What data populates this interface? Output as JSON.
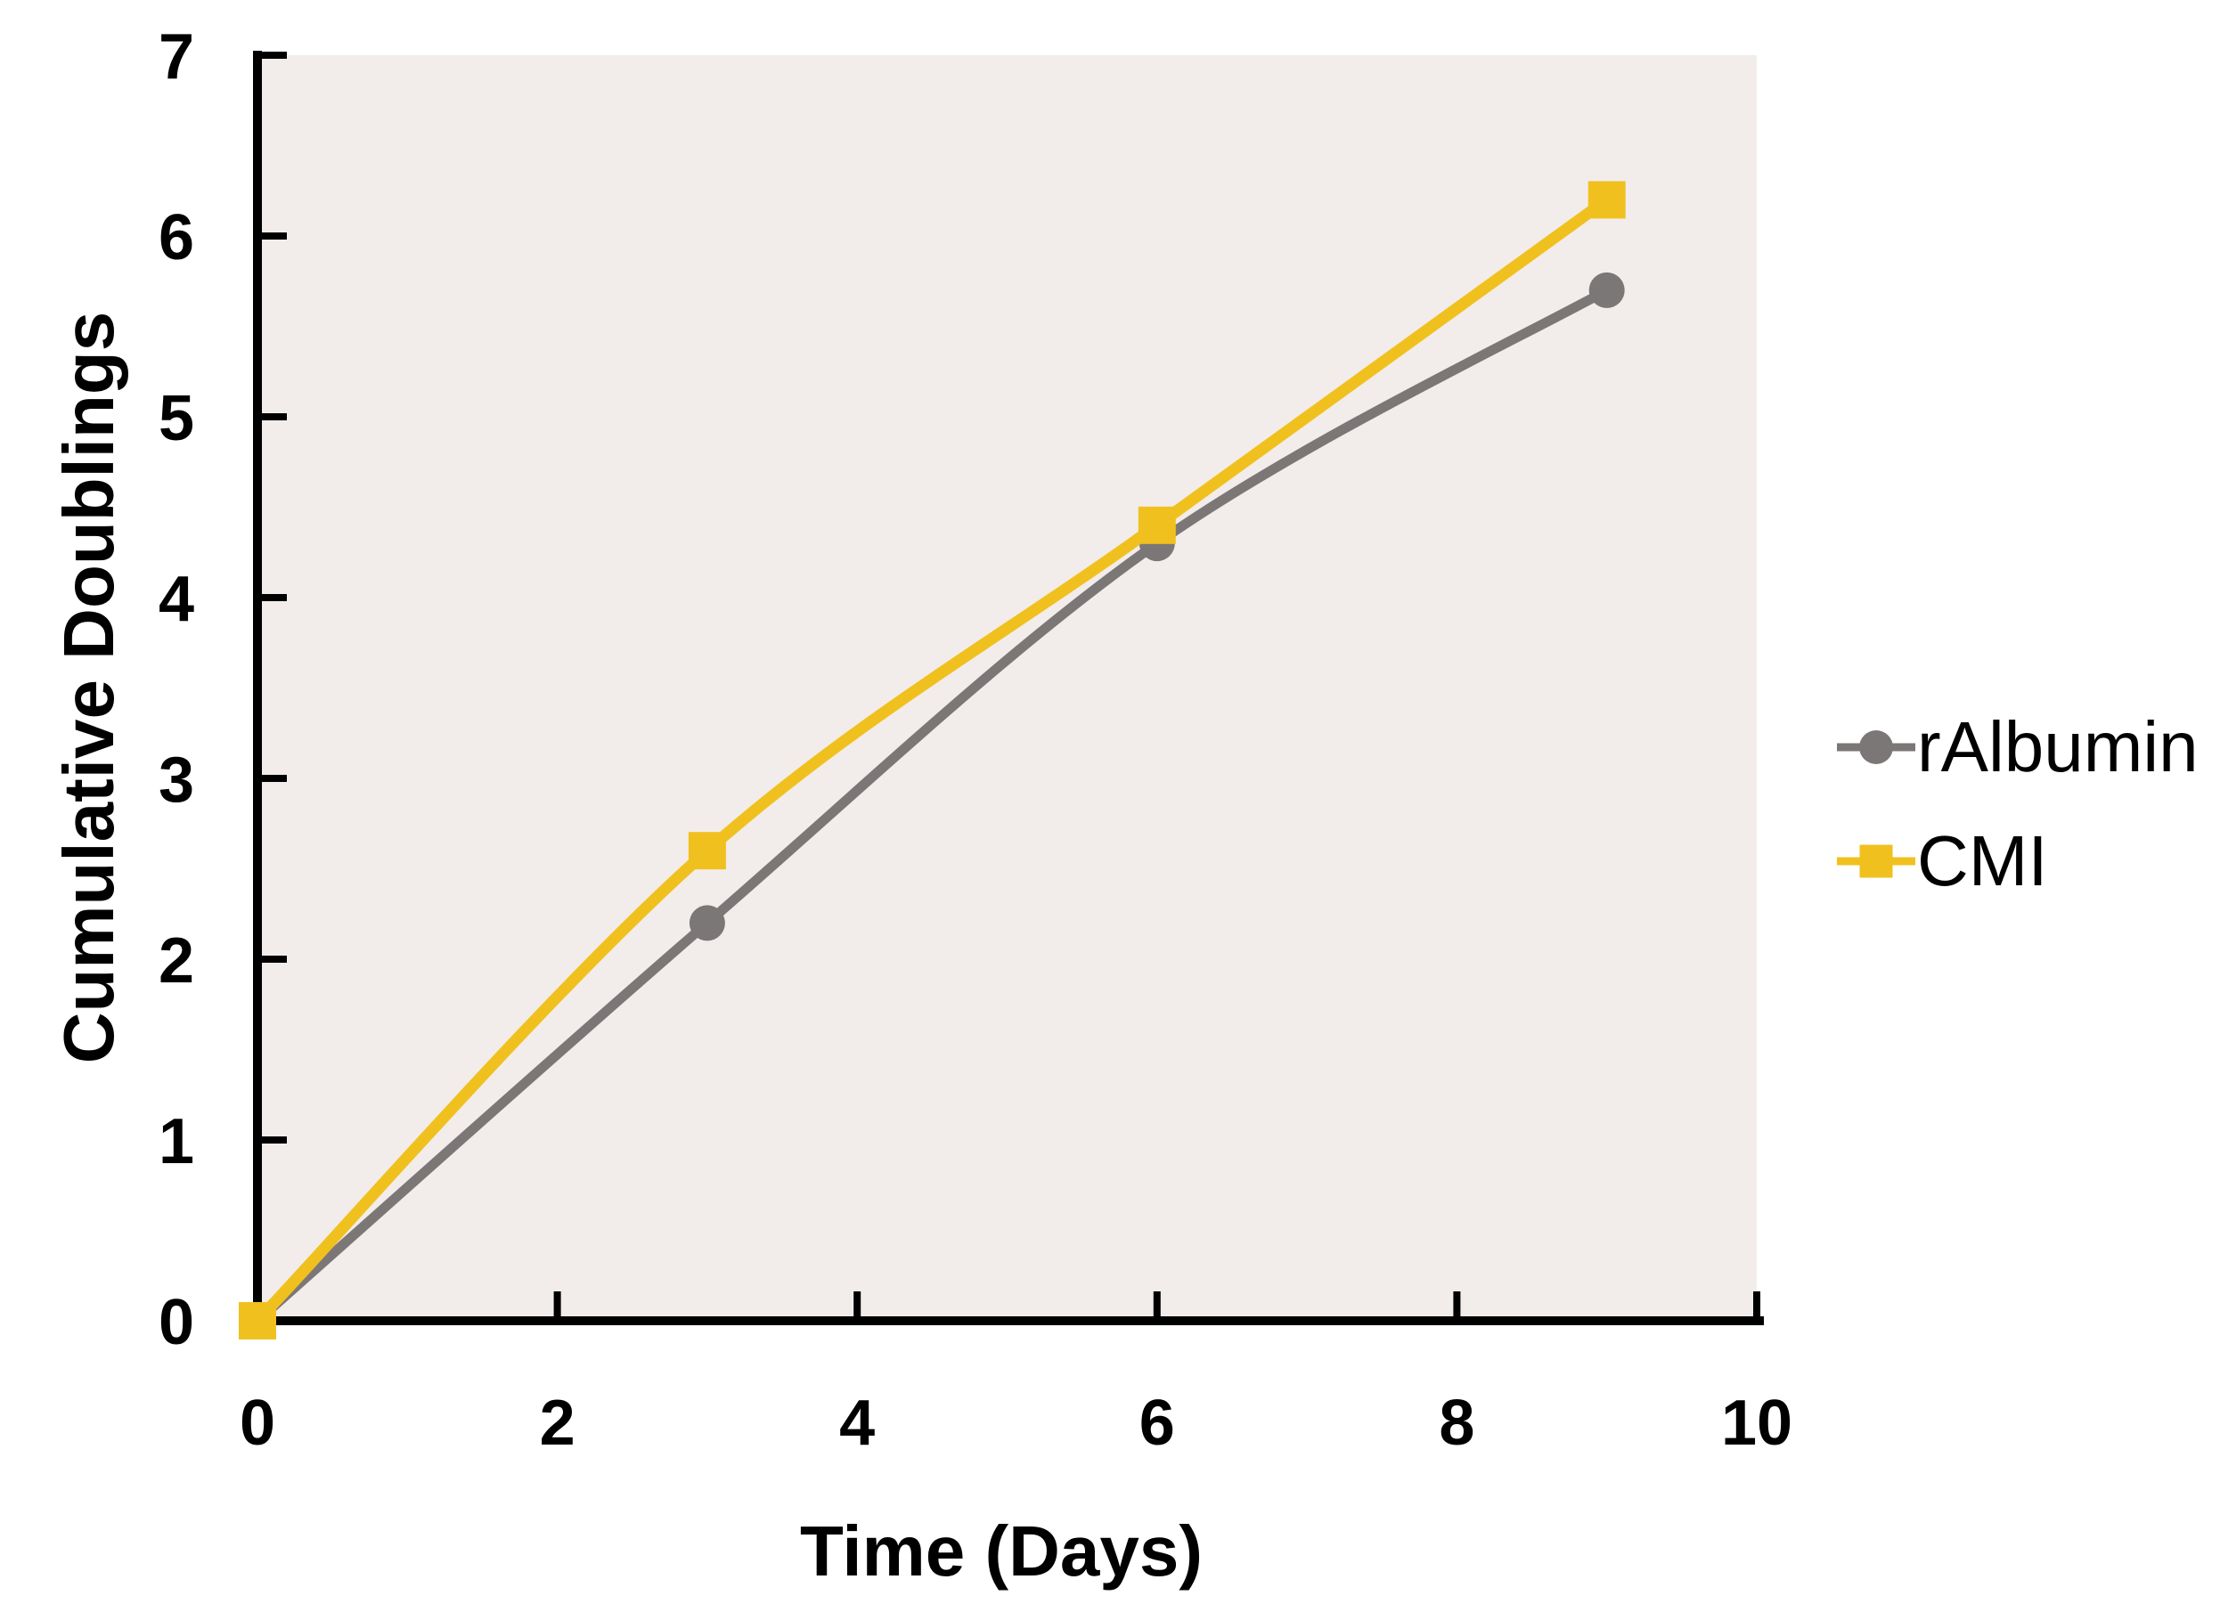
{
  "chart_data": {
    "type": "line",
    "xlabel": "Time (Days)",
    "ylabel": "Cumulative Doublings",
    "x": [
      0,
      3,
      6,
      9
    ],
    "series": [
      {
        "name": "rAlbumin",
        "values": [
          0,
          2.2,
          4.3,
          5.7
        ],
        "color": "#7C7777",
        "marker": "circle",
        "line_width": 11,
        "marker_size": 40
      },
      {
        "name": "CMI",
        "values": [
          0,
          2.6,
          4.4,
          6.2
        ],
        "color": "#F0C11E",
        "marker": "square",
        "line_width": 13,
        "marker_size": 42
      }
    ],
    "xlim": [
      0,
      10
    ],
    "ylim": [
      0,
      7
    ],
    "x_ticks": [
      0,
      2,
      4,
      6,
      8,
      10
    ],
    "y_ticks": [
      0,
      1,
      2,
      3,
      4,
      5,
      6,
      7
    ],
    "grid": false,
    "smooth": true,
    "legend_position": "right",
    "plot_bg_color": "#F2EDEB",
    "axis_color": "#000000",
    "page_bg_color": "#FFFFFF"
  },
  "legend": {
    "items": [
      {
        "label": "rAlbumin"
      },
      {
        "label": "CMI"
      }
    ]
  }
}
